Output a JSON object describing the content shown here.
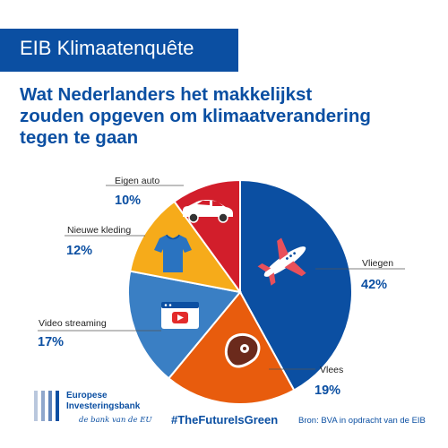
{
  "banner": {
    "title": "EIB Klimaatenquête"
  },
  "colors": {
    "brand": "#0b4fa2",
    "vliegen": "#0b4fa2",
    "vlees": "#e85c0d",
    "video": "#3a7fc4",
    "kleding": "#f6ab1a",
    "auto": "#d21e2b"
  },
  "chart_data": {
    "type": "pie",
    "title_lines": [
      "Wat Nederlanders het makkelijkst",
      "zouden opgeven om klimaatverandering",
      "tegen te gaan"
    ],
    "slices": [
      {
        "label": "Vliegen",
        "value": 42,
        "pct_label": "42%",
        "color": "#0b4fa2",
        "icon": "airplane-icon"
      },
      {
        "label": "Vlees",
        "value": 19,
        "pct_label": "19%",
        "color": "#e85c0d",
        "icon": "steak-icon"
      },
      {
        "label": "Video streaming",
        "value": 17,
        "pct_label": "17%",
        "color": "#3a7fc4",
        "icon": "video-player-icon"
      },
      {
        "label": "Nieuwe kleding",
        "value": 12,
        "pct_label": "12%",
        "color": "#f6ab1a",
        "icon": "tshirt-icon"
      },
      {
        "label": "Eigen auto",
        "value": 10,
        "pct_label": "10%",
        "color": "#d21e2b",
        "icon": "car-icon"
      }
    ]
  },
  "footer": {
    "logo_lines": [
      "Europese",
      "Investeringsbank"
    ],
    "logo_tagline": "de bank van de EU",
    "hashtag": "#TheFutureIsGreen",
    "source": "Bron: BVA in opdracht van de EIB"
  }
}
